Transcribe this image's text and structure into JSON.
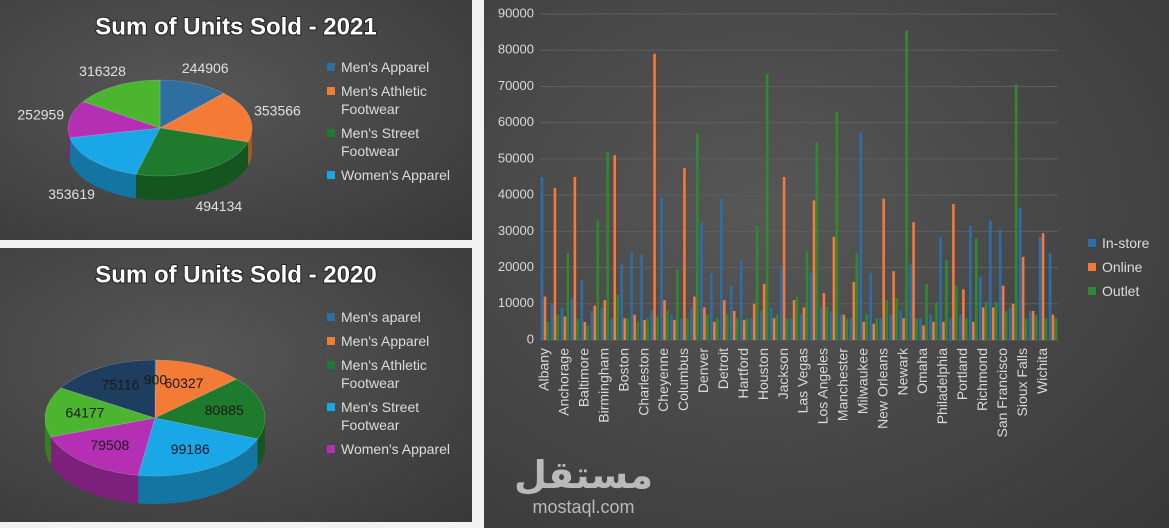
{
  "chart_data": [
    {
      "type": "pie",
      "title": "Sum of Units Sold - 2021",
      "categories": [
        "Men's Apparel",
        "Men's Athletic Footwear",
        "Men's Street Footwear",
        "Women's Apparel",
        null,
        null
      ],
      "values": [
        244906,
        353566,
        494134,
        353619,
        252959,
        316328
      ],
      "colors": [
        "#2e6ea1",
        "#f47b36",
        "#1e7a2c",
        "#1aa7e8",
        "#b42fb3",
        "#4cb52f"
      ],
      "legend": "right"
    },
    {
      "type": "pie",
      "title": "Sum of Units Sold - 2020",
      "categories": [
        "Men's aparel",
        "Men's Apparel",
        "Men's Athletic Footwear",
        "Men's Street Footwear",
        "Women's Apparel",
        null,
        null
      ],
      "values": [
        900,
        60327,
        80885,
        99186,
        79508,
        64177,
        75116
      ],
      "colors": [
        "#2e6ea1",
        "#f47b36",
        "#1e7a2c",
        "#1aa7e8",
        "#b42fb3",
        "#4cb52f",
        "#1d3e5e"
      ],
      "legend": "right"
    },
    {
      "type": "bar",
      "categories": [
        "Albany",
        null,
        "Anchorage",
        null,
        "Baltimore",
        null,
        "Birmingham",
        null,
        "Boston",
        null,
        "Charleston",
        null,
        "Cheyenne",
        null,
        "Columbus",
        null,
        "Denver",
        null,
        "Detroit",
        null,
        "Hartford",
        null,
        "Houston",
        null,
        "Jackson",
        null,
        "Las Vegas",
        null,
        "Los Angeles",
        null,
        "Manchester",
        null,
        "Milwaukee",
        null,
        "New Orleans",
        null,
        "Newark",
        null,
        "Omaha",
        null,
        "Philadelphia",
        null,
        "Portland",
        null,
        "Richmond",
        null,
        "San Francisco",
        null,
        "Sioux Falls",
        null,
        "Wichita",
        null
      ],
      "series": [
        {
          "name": "In-store",
          "color": "#2d6ea8",
          "values": [
            45000,
            10000,
            9000,
            11500,
            16500,
            8000,
            9000,
            6000,
            21000,
            24000,
            23500,
            8000,
            39500,
            7000,
            6000,
            9000,
            32500,
            18500,
            39000,
            15000,
            22000,
            6000,
            8000,
            9000,
            20500,
            6000,
            7000,
            18500,
            9000,
            8000,
            7000,
            6000,
            57500,
            18500,
            6000,
            7000,
            8000,
            21000,
            6000,
            7000,
            28500,
            6000,
            7000,
            31500,
            17500,
            33000,
            30500,
            9000,
            36500,
            8000,
            28500,
            24000
          ]
        },
        {
          "name": "Online",
          "color": "#f4793b",
          "values": [
            12000,
            42000,
            6500,
            45000,
            5000,
            9500,
            11000,
            51000,
            6000,
            7000,
            5500,
            79000,
            11000,
            5500,
            47500,
            12000,
            9000,
            5000,
            11000,
            8000,
            5500,
            10000,
            15500,
            6000,
            45000,
            11000,
            9000,
            38500,
            13000,
            28500,
            7000,
            16000,
            5000,
            4500,
            39000,
            19000,
            6000,
            32500,
            4000,
            5000,
            5000,
            37500,
            14000,
            5000,
            9000,
            9000,
            15000,
            10000,
            23000,
            8000,
            29500,
            7000
          ]
        },
        {
          "name": "Outlet",
          "color": "#2f8a2f",
          "values": [
            5000,
            7000,
            24000,
            6000,
            4000,
            33000,
            52000,
            12500,
            6000,
            5000,
            6000,
            6500,
            8000,
            19500,
            6000,
            57000,
            7000,
            6000,
            7000,
            6000,
            6000,
            31500,
            73500,
            7000,
            6000,
            12000,
            24500,
            54500,
            9000,
            63000,
            6000,
            24000,
            7000,
            6000,
            11000,
            11500,
            85500,
            6000,
            15500,
            10500,
            22000,
            15000,
            6000,
            28000,
            10500,
            10500,
            8000,
            70500,
            6000,
            7000,
            6000,
            6000
          ]
        }
      ],
      "ylim": [
        0,
        90000
      ],
      "yticks": [
        0,
        10000,
        20000,
        30000,
        40000,
        50000,
        60000,
        70000,
        80000,
        90000
      ],
      "grid": true,
      "legend": "right"
    }
  ],
  "watermark": {
    "brand": "مستقل",
    "site": "mostaql.com"
  }
}
